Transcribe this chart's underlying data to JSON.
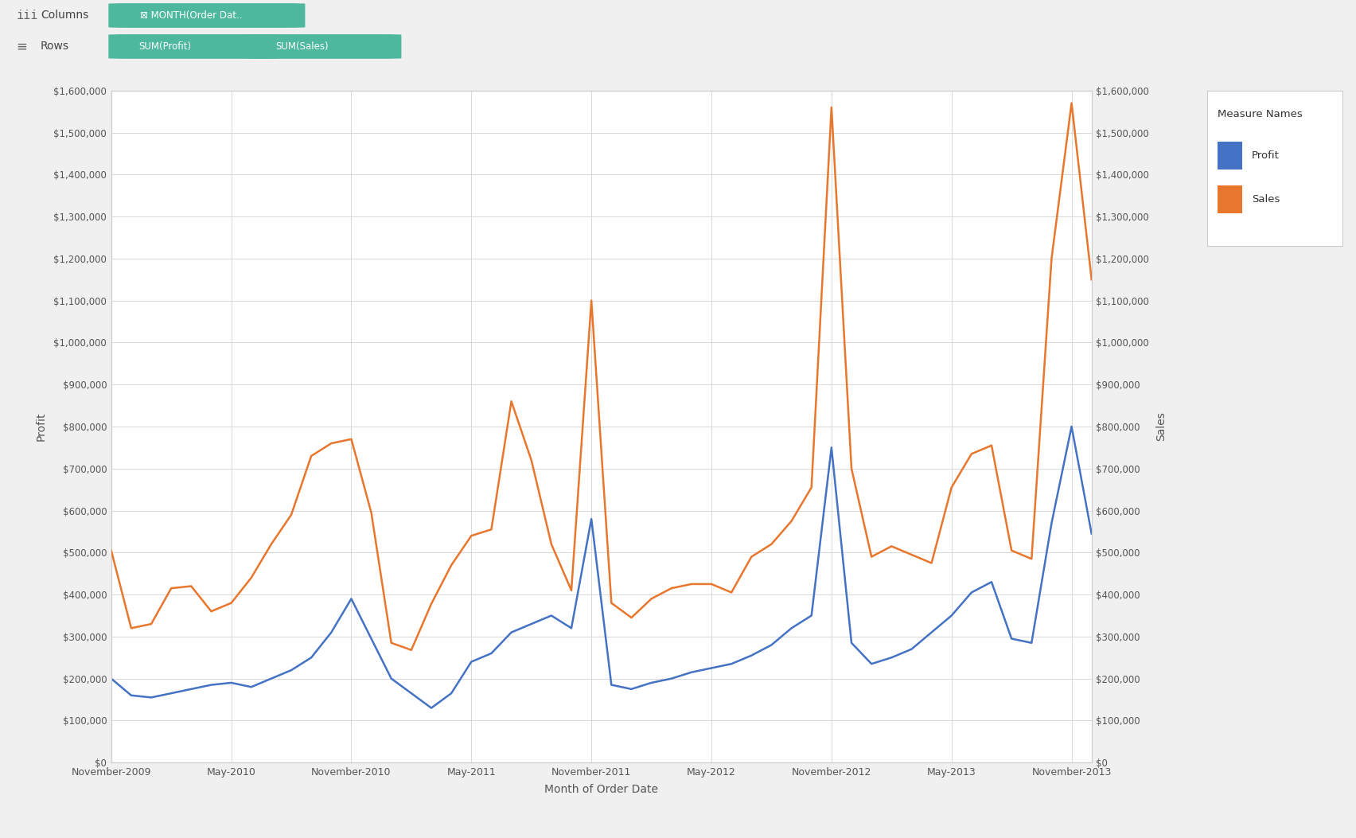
{
  "columns_label": "MONTH(Order Dat.",
  "rows_labels": [
    "SUM(Profit)",
    "SUM(Sales)"
  ],
  "xlabel": "Month of Order Date",
  "ylabel_left": "Profit",
  "ylabel_right": "Sales",
  "legend_title": "Measure Names",
  "legend_items": [
    "Profit",
    "Sales"
  ],
  "legend_colors": [
    "#4472c4",
    "#e8762d"
  ],
  "profit_color": "#4472c4",
  "sales_color": "#e8762d",
  "outer_bg": "#f0f0f0",
  "toolbar_bg": "#e8e8e8",
  "plot_bg_color": "#ffffff",
  "grid_color": "#d8d8d8",
  "ymin": 0,
  "ymax": 1600000,
  "ytick_step": 100000,
  "profit": [
    200000,
    160000,
    155000,
    165000,
    175000,
    185000,
    190000,
    180000,
    200000,
    220000,
    250000,
    310000,
    390000,
    295000,
    200000,
    165000,
    130000,
    165000,
    240000,
    260000,
    310000,
    330000,
    350000,
    320000,
    580000,
    185000,
    175000,
    190000,
    200000,
    215000,
    225000,
    235000,
    255000,
    280000,
    320000,
    350000,
    750000,
    285000,
    235000,
    250000,
    270000,
    310000,
    350000,
    405000,
    430000,
    295000,
    285000,
    570000,
    800000,
    545000
  ],
  "sales": [
    505000,
    320000,
    330000,
    415000,
    420000,
    360000,
    380000,
    440000,
    520000,
    590000,
    730000,
    760000,
    770000,
    595000,
    285000,
    268000,
    378000,
    470000,
    540000,
    555000,
    860000,
    720000,
    520000,
    410000,
    1100000,
    380000,
    345000,
    390000,
    415000,
    425000,
    425000,
    405000,
    490000,
    520000,
    575000,
    655000,
    1560000,
    700000,
    490000,
    515000,
    495000,
    475000,
    655000,
    735000,
    755000,
    505000,
    485000,
    1200000,
    1570000,
    1150000
  ],
  "xtick_positions": [
    0,
    6,
    12,
    18,
    24,
    30,
    36,
    42,
    48
  ],
  "xtick_labels": [
    "November-2009",
    "May-2010",
    "November-2010",
    "May-2011",
    "November-2011",
    "May-2012",
    "November-2012",
    "May-2013",
    "November-2013"
  ]
}
